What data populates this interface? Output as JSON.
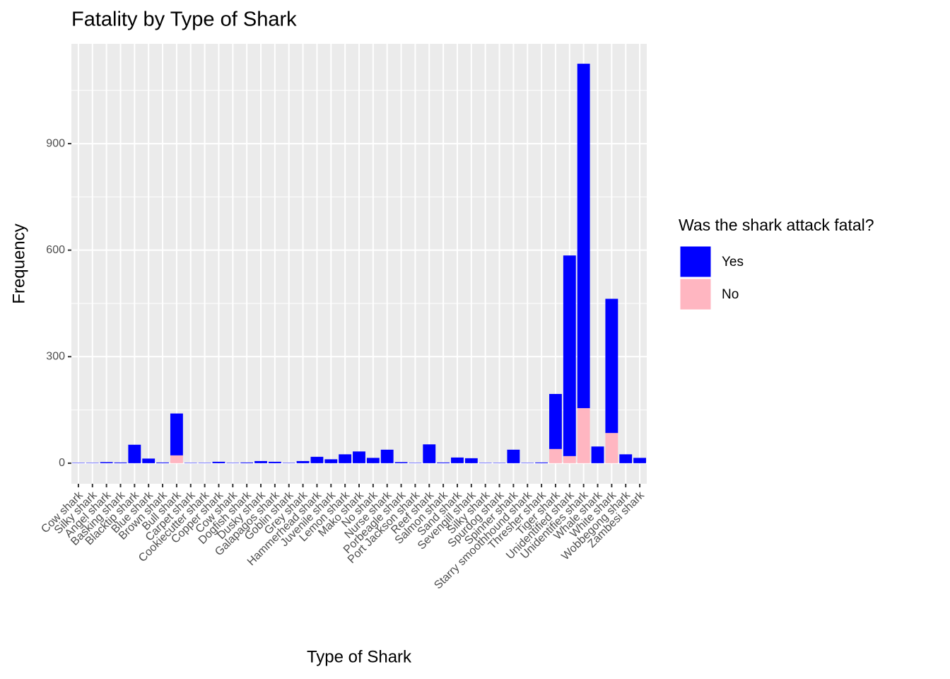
{
  "chart_data": {
    "type": "stacked_bar",
    "title": "Fatality by Type of Shark",
    "x_label": "Type of Shark",
    "y_label": "Frequency",
    "legend_title": "Was the shark attack fatal?",
    "categories": [
      "Cow shark",
      "Silky shark",
      "Angel shark",
      "Basking shark",
      "Blacktip shark",
      "Blue shark",
      "Brown shark",
      "Bull shark",
      "Carpet shark",
      "Cookiecutter shark",
      "Copper shark",
      "Cow shark",
      "Dogfish shark",
      "Dusky shark",
      "Galapagos shark",
      "Goblin shark",
      "Grey shark",
      "Hammerhead shark",
      "Juvenile shark",
      "Lemon shark",
      "Mako shark",
      "No shark",
      "Nurse shark",
      "Porbeagle shark",
      "Port Jackson shark",
      "Reef shark",
      "Salmon shark",
      "Sand shark",
      "Sevengill shark",
      "Silky shark",
      "Spurdog shark",
      "Spinner shark",
      "Starry smoothhound shark",
      "Thresher shark",
      "Tiger shark",
      "Unidentified shark",
      "Unidentifies shark",
      "Whale shark",
      "White shark",
      "Wobbegong shark",
      "Zambesi shark"
    ],
    "series": [
      {
        "name": "Yes",
        "color": "#0000ff",
        "values": [
          1,
          1,
          3,
          2,
          52,
          13,
          2,
          118,
          1,
          1,
          4,
          1,
          2,
          6,
          4,
          1,
          6,
          18,
          11,
          25,
          33,
          15,
          38,
          3,
          1,
          53,
          2,
          16,
          14,
          1,
          1,
          38,
          1,
          2,
          155,
          565,
          970,
          47,
          378,
          25,
          15
        ]
      },
      {
        "name": "No",
        "color": "#ffb6c1",
        "values": [
          0,
          0,
          0,
          0,
          0,
          0,
          0,
          22,
          0,
          0,
          0,
          0,
          0,
          0,
          0,
          0,
          0,
          0,
          0,
          0,
          0,
          0,
          0,
          0,
          0,
          0,
          0,
          0,
          0,
          0,
          0,
          0,
          0,
          0,
          40,
          20,
          155,
          0,
          85,
          0,
          0
        ]
      }
    ],
    "ylim": [
      -58,
      1181
    ],
    "yticks": [
      0,
      300,
      600,
      900
    ],
    "grid": true,
    "legend_position": "right"
  }
}
